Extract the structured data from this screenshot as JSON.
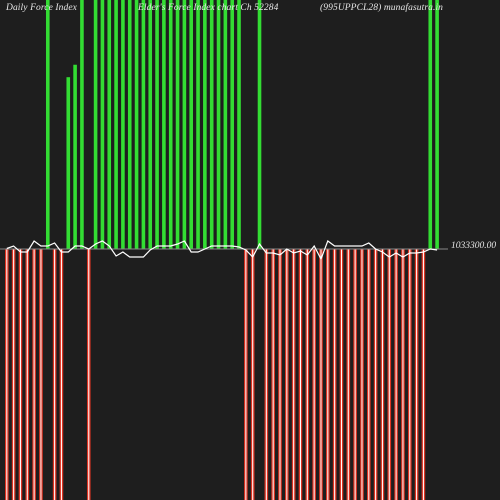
{
  "header": {
    "left": "Daily Force  Index",
    "middle": "Elder's Force Index chart Ch 52284",
    "right": "(995UPPCL28) munafasutra.in"
  },
  "chart_data": {
    "type": "bar",
    "title": "Daily Force Index chart",
    "baseline_value": 1033300.0,
    "baseline_label": "1033300.00",
    "colors": {
      "background": "#1e1e1e",
      "positive_bar": "#33dd33",
      "negative_bar": "#dd3322",
      "negative_core": "#ffffff",
      "force_line": "#ffffff",
      "baseline": "#888888"
    },
    "bars": [
      {
        "v": -1,
        "c": "r"
      },
      {
        "v": -1,
        "c": "r"
      },
      {
        "v": -1,
        "c": "r"
      },
      {
        "v": -1,
        "c": "r"
      },
      {
        "v": -1,
        "c": "r"
      },
      {
        "v": -1,
        "c": "r"
      },
      {
        "v": 1,
        "c": "g"
      },
      {
        "v": -1,
        "c": "r"
      },
      {
        "v": -1,
        "c": "r"
      },
      {
        "v": 0.69,
        "c": "g"
      },
      {
        "v": 0.74,
        "c": "g"
      },
      {
        "v": 1,
        "c": "g"
      },
      {
        "v": -1,
        "c": "r"
      },
      {
        "v": 1,
        "c": "g"
      },
      {
        "v": 1,
        "c": "g"
      },
      {
        "v": 1,
        "c": "g"
      },
      {
        "v": 1,
        "c": "g"
      },
      {
        "v": 1,
        "c": "g"
      },
      {
        "v": 1,
        "c": "g"
      },
      {
        "v": 1,
        "c": "g"
      },
      {
        "v": 1,
        "c": "g"
      },
      {
        "v": 1,
        "c": "g"
      },
      {
        "v": 1,
        "c": "g"
      },
      {
        "v": 1,
        "c": "g"
      },
      {
        "v": 1,
        "c": "g"
      },
      {
        "v": 1,
        "c": "g"
      },
      {
        "v": 1,
        "c": "g"
      },
      {
        "v": 1,
        "c": "g"
      },
      {
        "v": 1,
        "c": "g"
      },
      {
        "v": 1,
        "c": "g"
      },
      {
        "v": 1,
        "c": "g"
      },
      {
        "v": 1,
        "c": "g"
      },
      {
        "v": 1,
        "c": "g"
      },
      {
        "v": 1,
        "c": "g"
      },
      {
        "v": 1,
        "c": "g"
      },
      {
        "v": -1,
        "c": "r"
      },
      {
        "v": -1,
        "c": "r"
      },
      {
        "v": 1,
        "c": "g"
      },
      {
        "v": -1,
        "c": "r"
      },
      {
        "v": -1,
        "c": "r"
      },
      {
        "v": -1,
        "c": "r"
      },
      {
        "v": -1,
        "c": "r"
      },
      {
        "v": -1,
        "c": "r"
      },
      {
        "v": -1,
        "c": "r"
      },
      {
        "v": -1,
        "c": "r"
      },
      {
        "v": -1,
        "c": "r"
      },
      {
        "v": -1,
        "c": "r"
      },
      {
        "v": -1,
        "c": "r"
      },
      {
        "v": -1,
        "c": "r"
      },
      {
        "v": -1,
        "c": "r"
      },
      {
        "v": -1,
        "c": "r"
      },
      {
        "v": -1,
        "c": "r"
      },
      {
        "v": -1,
        "c": "r"
      },
      {
        "v": -1,
        "c": "r"
      },
      {
        "v": -1,
        "c": "r"
      },
      {
        "v": -1,
        "c": "r"
      },
      {
        "v": -1,
        "c": "r"
      },
      {
        "v": -1,
        "c": "r"
      },
      {
        "v": -1,
        "c": "r"
      },
      {
        "v": -1,
        "c": "r"
      },
      {
        "v": -1,
        "c": "r"
      },
      {
        "v": -1,
        "c": "r"
      },
      {
        "v": 1,
        "c": "g"
      },
      {
        "v": 1,
        "c": "g"
      }
    ],
    "force_line": [
      0.5,
      3,
      -3,
      -3,
      8,
      3,
      3,
      6,
      -3,
      -3,
      3,
      3,
      0,
      5,
      8,
      3,
      -7,
      -3,
      -8,
      -8,
      -8,
      -1,
      3,
      3,
      3,
      5,
      8,
      -3,
      -3,
      0,
      3,
      3,
      3,
      3,
      2,
      -1,
      -8,
      5,
      -4,
      -4,
      -6,
      0,
      -4,
      -2,
      -6,
      3,
      -10,
      8,
      3,
      3,
      3,
      3,
      3,
      6,
      0,
      -3,
      -8,
      -4,
      -8,
      -4,
      -4,
      -3,
      0,
      -1
    ]
  }
}
